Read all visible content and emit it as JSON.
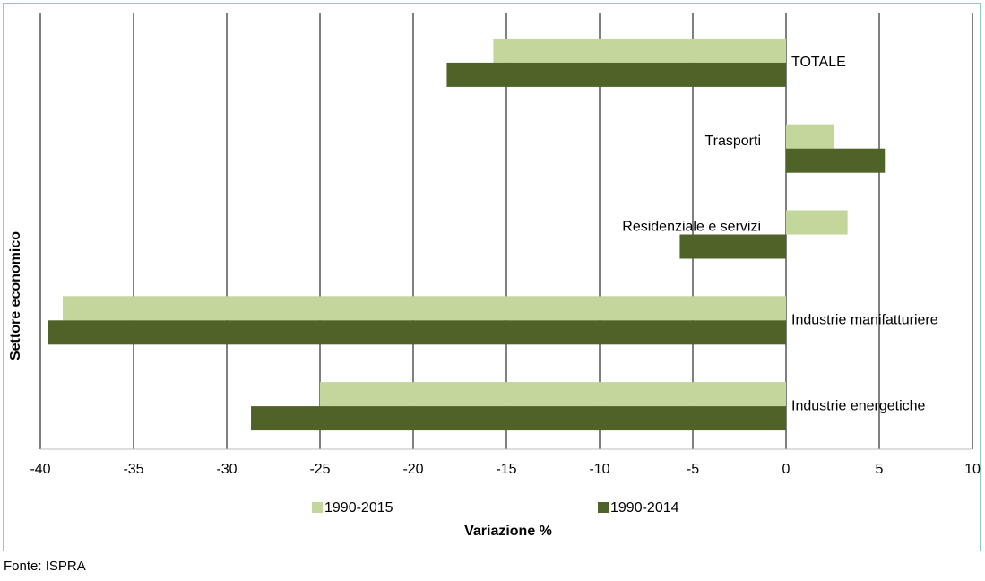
{
  "chart_data": {
    "type": "bar",
    "orientation": "horizontal",
    "categories": [
      "TOTALE",
      "Trasporti",
      "Residenziale e servizi",
      "Industrie manifatturiere",
      "Industrie energetiche"
    ],
    "series": [
      {
        "name": "1990-2015",
        "color": "#c3d69b",
        "values": [
          -15.7,
          2.6,
          3.3,
          -38.8,
          -25.0
        ]
      },
      {
        "name": "1990-2014",
        "color": "#4f6228",
        "values": [
          -18.2,
          5.3,
          -5.7,
          -39.6,
          -28.7
        ]
      }
    ],
    "xlim": [
      -40,
      10
    ],
    "xticks": [
      -40,
      -35,
      -30,
      -25,
      -20,
      -15,
      -10,
      -5,
      0,
      5,
      10
    ],
    "xlabel": "Variazione  %",
    "ylabel": "Settore economico",
    "grid": true,
    "legend": "bottom",
    "source": "Fonte: ISPRA"
  }
}
